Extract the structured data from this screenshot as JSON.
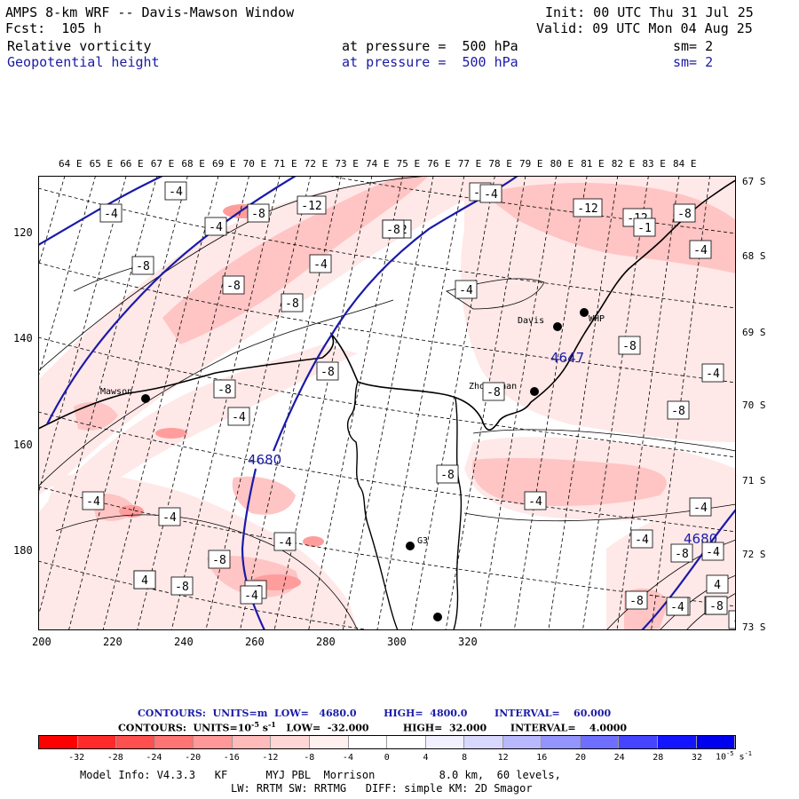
{
  "header": {
    "title": "AMPS 8-km WRF -- Davis-Mawson Window",
    "init": "Init: 00 UTC Thu 31 Jul 25",
    "forecast": "Fcst:  105 h",
    "valid": "Valid: 09 UTC Mon 04 Aug 25",
    "field1": {
      "name": "Relative vorticity",
      "level": "at pressure =  500 hPa",
      "sm": "sm= 2"
    },
    "field2": {
      "name": "Geopotential height",
      "level": "at pressure =  500 hPa",
      "sm": "sm= 2"
    }
  },
  "map": {
    "lon_labels": [
      "64 E",
      "65 E",
      "66 E",
      "67 E",
      "68 E",
      "69 E",
      "70 E",
      "71 E",
      "72 E",
      "73 E",
      "74 E",
      "75 E",
      "76 E",
      "77 E",
      "78 E",
      "79 E",
      "80 E",
      "81 E",
      "82 E",
      "83 E",
      "84 E"
    ],
    "lat_labels": [
      "67 S",
      "68 S",
      "69 S",
      "70 S",
      "71 S",
      "72 S",
      "73 S"
    ],
    "x_ticks": [
      "200",
      "220",
      "240",
      "260",
      "280",
      "300",
      "320"
    ],
    "y_ticks": [
      "120",
      "140",
      "160",
      "180"
    ],
    "stations": [
      {
        "name": "Mawson"
      },
      {
        "name": "Davis"
      },
      {
        "name": "WHP"
      },
      {
        "name": "Zhongshan"
      },
      {
        "name": "G3"
      }
    ],
    "height_labels": [
      "4647",
      "4680",
      "4680"
    ],
    "vort_labels": [
      "-4",
      "-4",
      "-4",
      "-8",
      "-12",
      "-12",
      "-8",
      "-4",
      "-8",
      "-8",
      "-4",
      "-8",
      "-12",
      "-8",
      "-12",
      "-4",
      "-8",
      "-4",
      "-8",
      "-8",
      "-4",
      "-8",
      "-4",
      "-4",
      "-4",
      "-8",
      "-4",
      "-8",
      "-4",
      "-4",
      "-4",
      "-4",
      "-8",
      "-4",
      "-8",
      "-8",
      "-4",
      "4",
      "-8",
      "-8",
      "-4",
      "4",
      "-8",
      "-4",
      "-8",
      "-4",
      "-8",
      "-1"
    ]
  },
  "contours": {
    "line1": "CONTOURS:  UNITS=m  LOW=   4680.0        HIGH=  4800.0        INTERVAL=    60.000",
    "line2_a": "CONTOURS:  UNITS=10",
    "line2_b": " s",
    "line2_c": "   LOW=  -32.000          HIGH=  32.000       INTERVAL=    4.0000",
    "exp_neg5": "-5",
    "exp_neg1": "-1"
  },
  "colorbar": {
    "labels": [
      "-32",
      "-28",
      "-24",
      "-20",
      "-16",
      "-12",
      "-8",
      "-4",
      "0",
      "4",
      "8",
      "12",
      "16",
      "20",
      "24",
      "28",
      "32"
    ],
    "unit": "10",
    "unit_exp": "-5",
    "unit_s": "s",
    "unit_s_exp": "-1",
    "colors": [
      "#ff0000",
      "#ff2b2b",
      "#ff5050",
      "#ff7474",
      "#ff9898",
      "#ffbaba",
      "#ffd6d6",
      "#fff0f0",
      "#ffffff",
      "#ffffff",
      "#f0f0ff",
      "#d8d8ff",
      "#b8b8ff",
      "#9494ff",
      "#6e6eff",
      "#4545ff",
      "#1414ff",
      "#0000ee"
    ]
  },
  "footer": {
    "line1": "Model Info: V4.3.3   KF      MYJ PBL  Morrison          8.0 km,  60 levels,",
    "line2": "LW: RRTM SW: RRTMG   DIFF: simple KM: 2D Smagor"
  }
}
